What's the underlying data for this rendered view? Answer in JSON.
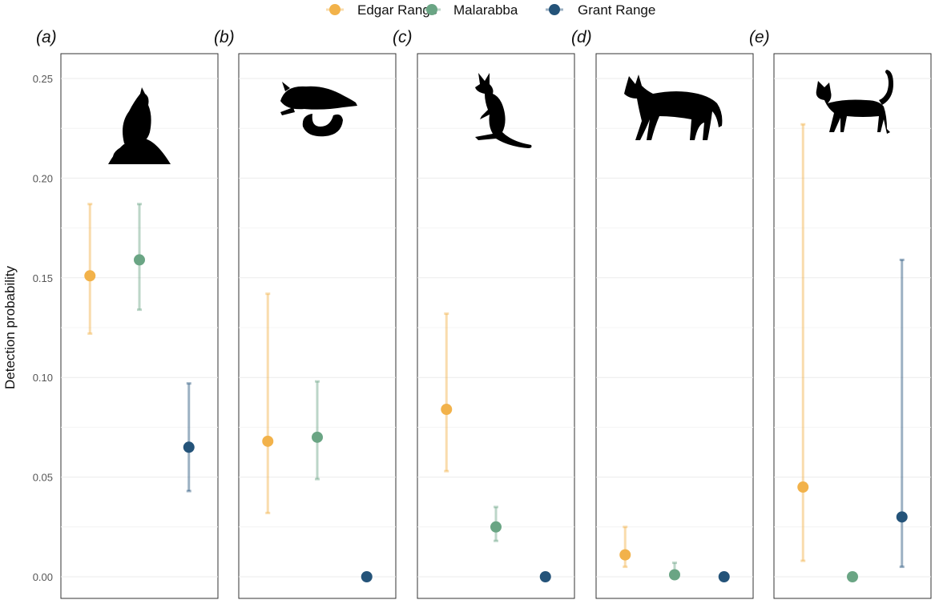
{
  "chart_data": {
    "type": "scatter",
    "subtype": "point-range (estimate with interval)",
    "ylabel": "Detection probability",
    "ylim": [
      0,
      0.25
    ],
    "yticks": [
      0.0,
      0.05,
      0.1,
      0.15,
      0.2,
      0.25
    ],
    "ytick_labels": [
      "0.00",
      "0.05",
      "0.10",
      "0.15",
      "0.20",
      "0.25"
    ],
    "grid": true,
    "legend_position": "top",
    "sites": [
      {
        "name": "Edgar Range",
        "color": "#f2b24a"
      },
      {
        "name": "Malarabba",
        "color": "#6aa584"
      },
      {
        "name": "Grant Range",
        "color": "#245379"
      }
    ],
    "panels": [
      {
        "label": "(a)",
        "icon": "rock-wallaby-silhouette-icon",
        "points": [
          {
            "site": "Edgar Range",
            "value": 0.151,
            "lower": 0.122,
            "upper": 0.187
          },
          {
            "site": "Malarabba",
            "value": 0.159,
            "lower": 0.134,
            "upper": 0.187
          },
          {
            "site": "Grant Range",
            "value": 0.065,
            "lower": 0.043,
            "upper": 0.097
          }
        ]
      },
      {
        "label": "(b)",
        "icon": "possum-silhouette-icon",
        "points": [
          {
            "site": "Edgar Range",
            "value": 0.068,
            "lower": 0.032,
            "upper": 0.142
          },
          {
            "site": "Malarabba",
            "value": 0.07,
            "lower": 0.049,
            "upper": 0.098
          },
          {
            "site": "Grant Range",
            "value": 0.0,
            "lower": null,
            "upper": null
          }
        ]
      },
      {
        "label": "(c)",
        "icon": "wallaby-silhouette-icon",
        "points": [
          {
            "site": "Edgar Range",
            "value": 0.084,
            "lower": 0.053,
            "upper": 0.132
          },
          {
            "site": "Malarabba",
            "value": 0.025,
            "lower": 0.018,
            "upper": 0.035
          },
          {
            "site": "Grant Range",
            "value": 0.0,
            "lower": null,
            "upper": null
          }
        ]
      },
      {
        "label": "(d)",
        "icon": "dingo-silhouette-icon",
        "points": [
          {
            "site": "Edgar Range",
            "value": 0.011,
            "lower": 0.005,
            "upper": 0.025
          },
          {
            "site": "Malarabba",
            "value": 0.001,
            "lower": 0.0,
            "upper": 0.007
          },
          {
            "site": "Grant Range",
            "value": 0.0,
            "lower": null,
            "upper": null
          }
        ]
      },
      {
        "label": "(e)",
        "icon": "cat-silhouette-icon",
        "points": [
          {
            "site": "Edgar Range",
            "value": 0.045,
            "lower": 0.008,
            "upper": 0.227
          },
          {
            "site": "Malarabba",
            "value": 0.0,
            "lower": null,
            "upper": null
          },
          {
            "site": "Grant Range",
            "value": 0.03,
            "lower": 0.005,
            "upper": 0.159
          }
        ]
      }
    ]
  }
}
